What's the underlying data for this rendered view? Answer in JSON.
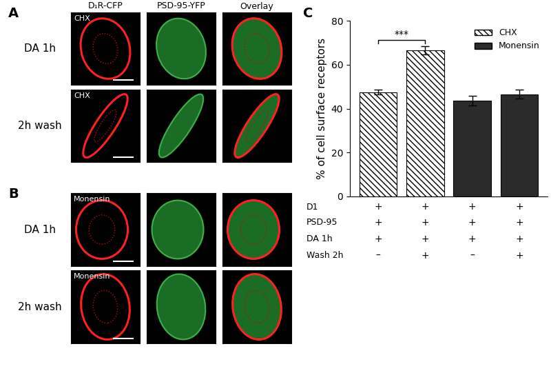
{
  "panels": [
    {
      "label": "A",
      "columns": [
        "D₁R-CFP",
        "PSD-95-YFP",
        "Overlay"
      ],
      "treatment": "CHX",
      "rows": [
        "DA 1h",
        "2h wash"
      ]
    },
    {
      "label": "B",
      "treatment": "Monensin",
      "rows": [
        "DA 1h",
        "2h wash"
      ]
    }
  ],
  "chart_data": {
    "panel_label": "C",
    "type": "bar",
    "categories": [
      null,
      null,
      null,
      null
    ],
    "series": [
      {
        "name": "CHX",
        "color": "#ffffff",
        "values": [
          47.5,
          66.5,
          null,
          null
        ],
        "errors": [
          1.2,
          1.8,
          null,
          null
        ]
      },
      {
        "name": "Monensin",
        "color": "#2b2b2b",
        "values": [
          null,
          null,
          43.5,
          46.5
        ],
        "errors": [
          null,
          null,
          2.2,
          2.0
        ]
      }
    ],
    "y_label": "% of cell surface receptors",
    "ylim": [
      0,
      80
    ],
    "yticks": [
      0,
      20,
      40,
      60,
      80
    ],
    "legend": "upper right",
    "tick_labels": "y",
    "significance": [
      {
        "text": "***",
        "between": [
          0,
          1
        ]
      }
    ],
    "condition_table": [
      {
        "label": "D1",
        "marks": [
          "+",
          "+",
          "+",
          "+"
        ]
      },
      {
        "label": "PSD-95",
        "marks": [
          "+",
          "+",
          "+",
          "+"
        ]
      },
      {
        "label": "DA 1h",
        "marks": [
          "+",
          "+",
          "+",
          "+"
        ]
      },
      {
        "label": "Wash 2h",
        "marks": [
          "–",
          "+",
          "–",
          "+"
        ]
      }
    ]
  }
}
